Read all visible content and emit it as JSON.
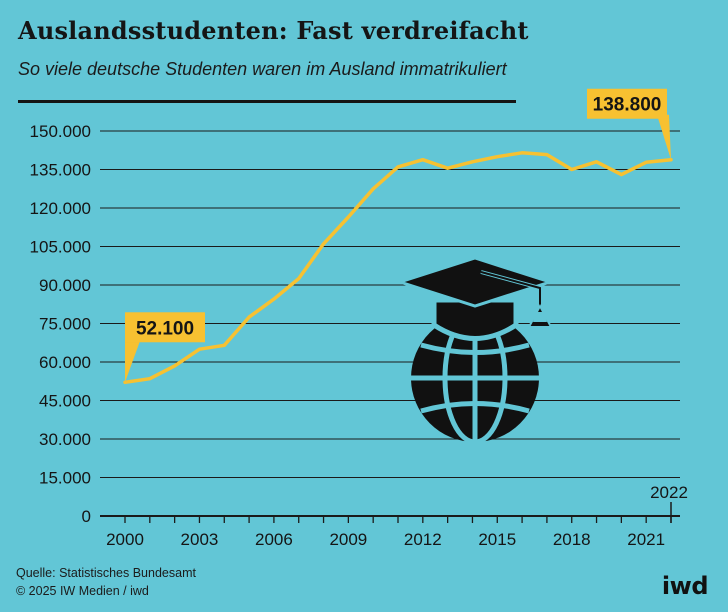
{
  "header": {
    "title": "Auslandsstudenten: Fast verdreifacht",
    "subtitle": "So viele deutsche Studenten waren im Ausland immatrikuliert"
  },
  "footer": {
    "source": "Quelle: Statistisches Bundesamt",
    "copyright": "© 2025 IW Medien / iwd",
    "logo": "iwd"
  },
  "colors": {
    "background": "#62c6d6",
    "line": "#f7c131",
    "label_bg": "#f7c131",
    "text": "#151515",
    "icon": "#111111"
  },
  "icon": "graduation-globe-icon",
  "chart_data": {
    "type": "line",
    "title": "Auslandsstudenten: Fast verdreifacht",
    "subtitle": "So viele deutsche Studenten waren im Ausland immatrikuliert",
    "x": [
      2000,
      2001,
      2002,
      2003,
      2004,
      2005,
      2006,
      2007,
      2008,
      2009,
      2010,
      2011,
      2012,
      2013,
      2014,
      2015,
      2016,
      2017,
      2018,
      2019,
      2020,
      2021,
      2022
    ],
    "series": [
      {
        "values": [
          52100,
          53500,
          58500,
          65000,
          66500,
          77500,
          84500,
          92500,
          106000,
          116500,
          127500,
          136000,
          138800,
          135500,
          138000,
          140000,
          141500,
          140800,
          135000,
          138000,
          133000,
          137800,
          138800
        ]
      }
    ],
    "ylim": [
      0,
      150000
    ],
    "yticks": [
      0,
      15000,
      30000,
      45000,
      60000,
      75000,
      90000,
      105000,
      120000,
      135000,
      150000
    ],
    "ytick_labels": [
      "0",
      "15.000",
      "30.000",
      "45.000",
      "60.000",
      "75.000",
      "90.000",
      "105.000",
      "120.000",
      "135.000",
      "150.000"
    ],
    "xticks": [
      2000,
      2003,
      2006,
      2009,
      2012,
      2015,
      2018,
      2021
    ],
    "xtick_labels": [
      "2000",
      "2003",
      "2006",
      "2009",
      "2012",
      "2015",
      "2018",
      "2021"
    ],
    "xtick_last_label": "2022",
    "grid": true,
    "annotations": [
      {
        "x": 2000,
        "value": 52100,
        "label": "52.100"
      },
      {
        "x": 2022,
        "value": 138800,
        "label": "138.800"
      }
    ]
  }
}
